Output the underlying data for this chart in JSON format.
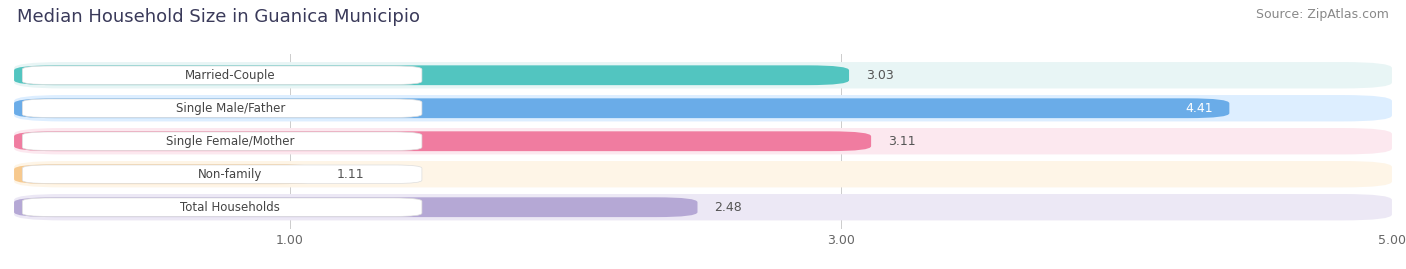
{
  "title": "Median Household Size in Guanica Municipio",
  "source": "Source: ZipAtlas.com",
  "categories": [
    "Married-Couple",
    "Single Male/Father",
    "Single Female/Mother",
    "Non-family",
    "Total Households"
  ],
  "values": [
    3.03,
    4.41,
    3.11,
    1.11,
    2.48
  ],
  "bar_colors": [
    "#52c5c0",
    "#6aace8",
    "#f07ca0",
    "#f7c98e",
    "#b5a8d5"
  ],
  "bar_bg_colors": [
    "#e8f5f5",
    "#ddeeff",
    "#fce8ef",
    "#fef5e7",
    "#ece8f5"
  ],
  "value_in_bar": [
    false,
    true,
    false,
    false,
    false
  ],
  "xlim": [
    0.0,
    5.0
  ],
  "xticks": [
    1.0,
    3.0,
    5.0
  ],
  "xtick_labels": [
    "1.00",
    "3.00",
    "5.00"
  ],
  "title_fontsize": 13,
  "source_fontsize": 9,
  "bar_label_fontsize": 9,
  "category_fontsize": 8.5,
  "background_color": "#ffffff",
  "grid_color": "#cccccc",
  "label_box_color": "#ffffff"
}
